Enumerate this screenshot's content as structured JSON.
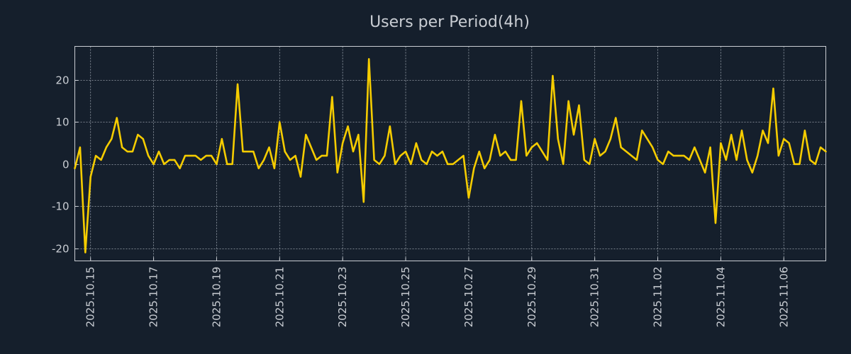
{
  "chart_data": {
    "type": "line",
    "title": "Users per Period(4h)",
    "xlabel": "",
    "ylabel": "",
    "ylim": [
      -23,
      28
    ],
    "yticks": [
      -20,
      -10,
      0,
      10,
      20
    ],
    "grid": true,
    "xtick_labels": [
      "2025.10.15",
      "2025.10.17",
      "2025.10.19",
      "2025.10.21",
      "2025.10.23",
      "2025.10.25",
      "2025.10.27",
      "2025.10.29",
      "2025.10.31",
      "2025.11.02",
      "2025.11.04",
      "2025.11.06"
    ],
    "x_start": "2025.10.14 12:00",
    "x_step_hours": 4,
    "series": [
      {
        "name": "users",
        "color": "#f5cc00",
        "values": [
          -1,
          4,
          -21,
          -3,
          2,
          1,
          4,
          6,
          11,
          4,
          3,
          3,
          7,
          6,
          2,
          0,
          3,
          0,
          1,
          1,
          -1,
          2,
          2,
          2,
          1,
          2,
          2,
          0,
          6,
          0,
          0,
          19,
          3,
          3,
          3,
          -1,
          1,
          4,
          -1,
          10,
          3,
          1,
          2,
          -3,
          7,
          4,
          1,
          2,
          2,
          16,
          -2,
          5,
          9,
          3,
          7,
          -9,
          25,
          1,
          0,
          2,
          9,
          0,
          2,
          3,
          0,
          5,
          1,
          0,
          3,
          2,
          3,
          0,
          0,
          1,
          2,
          -8,
          -1,
          3,
          -1,
          1,
          7,
          2,
          3,
          1,
          1,
          15,
          2,
          4,
          5,
          3,
          1,
          21,
          6,
          0,
          15,
          7,
          14,
          1,
          0,
          6,
          2,
          3,
          6,
          11,
          4,
          3,
          2,
          1,
          8,
          6,
          4,
          1,
          0,
          3,
          2,
          2,
          2,
          1,
          4,
          1,
          -2,
          4,
          -14,
          5,
          1,
          7,
          1,
          8,
          1,
          -2,
          2,
          8,
          5,
          18,
          2,
          6,
          5,
          0,
          0,
          8,
          1,
          0,
          4,
          3
        ]
      }
    ]
  }
}
